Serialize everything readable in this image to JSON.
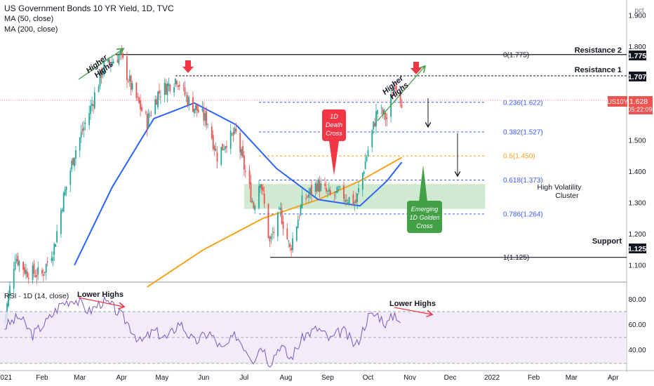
{
  "header": {
    "title": "US Government Bonds 10 YR Yield, 1D, TVC",
    "ma50": "MA (50, close)",
    "ma200": "MA (200, close)",
    "unit": "pct"
  },
  "rsi_panel": {
    "label": "RSI · 1D (14, close)",
    "yticks": [
      "80.00",
      "60.00",
      "40.00"
    ],
    "upper": 70,
    "mid": 50,
    "lower": 30
  },
  "colors": {
    "up": "#26a69a",
    "down": "#ef5350",
    "ma50": "#2962ff",
    "ma200": "#f7a21b",
    "rsi": "#7e57c2",
    "fib": "#3d5afe",
    "zone": "#c8e6c9",
    "annotation_red": "#f23645",
    "annotation_green": "#43a047"
  },
  "chart_data": {
    "type": "candlestick",
    "symbol": "US10Y",
    "last_value": "1.628",
    "countdown": "05:22:09",
    "ylim": [
      1.05,
      1.95
    ],
    "yticks": [
      "1.900",
      "1.800",
      "1.700",
      "1.600",
      "1.500",
      "1.400",
      "1.300",
      "1.200",
      "1.100"
    ],
    "x_labels": [
      {
        "label": "2021",
        "date": "2021-01-01"
      },
      {
        "label": "Feb",
        "date": "2021-02-01"
      },
      {
        "label": "Mar",
        "date": "2021-03-01"
      },
      {
        "label": "Apr",
        "date": "2021-04-01"
      },
      {
        "label": "May",
        "date": "2021-05-01"
      },
      {
        "label": "Jun",
        "date": "2021-06-01"
      },
      {
        "label": "Jul",
        "date": "2021-07-01"
      },
      {
        "label": "Aug",
        "date": "2021-08-01"
      },
      {
        "label": "Sep",
        "date": "2021-09-01"
      },
      {
        "label": "Oct",
        "date": "2021-10-01"
      },
      {
        "label": "Nov",
        "date": "2021-11-01"
      },
      {
        "label": "Dec",
        "date": "2021-12-01"
      },
      {
        "label": "2022",
        "date": "2022-01-01"
      },
      {
        "label": "Feb",
        "date": "2022-02-01"
      },
      {
        "label": "Mar",
        "date": "2022-03-01"
      },
      {
        "label": "Apr",
        "date": "2022-04-01"
      }
    ],
    "price_path": [
      [
        "2021-01-04",
        0.92
      ],
      [
        "2021-01-12",
        1.13
      ],
      [
        "2021-01-20",
        1.08
      ],
      [
        "2021-02-01",
        1.07
      ],
      [
        "2021-02-10",
        1.16
      ],
      [
        "2021-02-16",
        1.3
      ],
      [
        "2021-02-25",
        1.46
      ],
      [
        "2021-03-08",
        1.59
      ],
      [
        "2021-03-18",
        1.73
      ],
      [
        "2021-03-31",
        1.775
      ],
      [
        "2021-04-09",
        1.66
      ],
      [
        "2021-04-20",
        1.56
      ],
      [
        "2021-04-28",
        1.65
      ],
      [
        "2021-05-12",
        1.7
      ],
      [
        "2021-05-20",
        1.63
      ],
      [
        "2021-06-04",
        1.56
      ],
      [
        "2021-06-11",
        1.45
      ],
      [
        "2021-06-18",
        1.5
      ],
      [
        "2021-06-25",
        1.52
      ],
      [
        "2021-07-08",
        1.29
      ],
      [
        "2021-07-13",
        1.38
      ],
      [
        "2021-07-20",
        1.17
      ],
      [
        "2021-07-28",
        1.27
      ],
      [
        "2021-08-04",
        1.15
      ],
      [
        "2021-08-13",
        1.3
      ],
      [
        "2021-08-24",
        1.36
      ],
      [
        "2021-09-03",
        1.32
      ],
      [
        "2021-09-10",
        1.33
      ],
      [
        "2021-09-22",
        1.3
      ],
      [
        "2021-10-01",
        1.47
      ],
      [
        "2021-10-08",
        1.6
      ],
      [
        "2021-10-15",
        1.57
      ],
      [
        "2021-10-21",
        1.69
      ],
      [
        "2021-10-26",
        1.628
      ]
    ],
    "ma50": [
      [
        "2021-02-25",
        1.1
      ],
      [
        "2021-03-25",
        1.35
      ],
      [
        "2021-04-25",
        1.57
      ],
      [
        "2021-05-25",
        1.62
      ],
      [
        "2021-06-25",
        1.55
      ],
      [
        "2021-07-25",
        1.41
      ],
      [
        "2021-08-25",
        1.31
      ],
      [
        "2021-09-25",
        1.29
      ],
      [
        "2021-10-15",
        1.37
      ],
      [
        "2021-10-26",
        1.43
      ]
    ],
    "ma200": [
      [
        "2021-04-20",
        1.03
      ],
      [
        "2021-06-01",
        1.15
      ],
      [
        "2021-07-15",
        1.25
      ],
      [
        "2021-08-25",
        1.31
      ],
      [
        "2021-09-25",
        1.37
      ],
      [
        "2021-10-26",
        1.445
      ]
    ],
    "levels": [
      {
        "label": "Resistance 2",
        "value": "1.775"
      },
      {
        "label": "Resistance 1",
        "value": "1.707"
      },
      {
        "label": "Support",
        "value": "1.125"
      }
    ],
    "fib_levels": [
      {
        "label": "0(1.775)",
        "value": 1.775
      },
      {
        "label": "0.236(1.622)",
        "value": 1.622
      },
      {
        "label": "0.382(1.527)",
        "value": 1.527
      },
      {
        "label": "0.5(1.450)",
        "value": 1.45
      },
      {
        "label": "0.618(1.373)",
        "value": 1.373
      },
      {
        "label": "0.786(1.264)",
        "value": 1.264
      },
      {
        "label": "1(1.125)",
        "value": 1.125
      }
    ],
    "zone": {
      "label": [
        "High Volatility",
        "Cluster"
      ],
      "from_date": "2021-07-01",
      "to_date": "2021-12-27",
      "low": 1.28,
      "high": 1.36
    },
    "annotations": {
      "higher_highs_1": [
        "Higher",
        "Highs"
      ],
      "higher_highs_2": [
        "Higher",
        "Highs"
      ],
      "death_cross": [
        "1D",
        "Death",
        "Cross"
      ],
      "golden_cross": [
        "Emerging",
        "1D Golden",
        "Cross"
      ],
      "lower_highs_1": "Lower Highs",
      "lower_highs_2": "Lower Highs"
    },
    "rsi": [
      [
        "2021-01-04",
        58
      ],
      [
        "2021-01-15",
        66
      ],
      [
        "2021-01-25",
        52
      ],
      [
        "2021-02-05",
        63
      ],
      [
        "2021-02-15",
        76
      ],
      [
        "2021-02-25",
        80
      ],
      [
        "2021-03-08",
        70
      ],
      [
        "2021-03-18",
        78
      ],
      [
        "2021-03-25",
        74
      ],
      [
        "2021-04-05",
        62
      ],
      [
        "2021-04-15",
        46
      ],
      [
        "2021-04-25",
        55
      ],
      [
        "2021-05-05",
        49
      ],
      [
        "2021-05-14",
        62
      ],
      [
        "2021-05-25",
        46
      ],
      [
        "2021-06-05",
        54
      ],
      [
        "2021-06-15",
        40
      ],
      [
        "2021-06-25",
        52
      ],
      [
        "2021-07-08",
        33
      ],
      [
        "2021-07-14",
        45
      ],
      [
        "2021-07-20",
        30
      ],
      [
        "2021-07-28",
        45
      ],
      [
        "2021-08-04",
        33
      ],
      [
        "2021-08-15",
        52
      ],
      [
        "2021-08-25",
        57
      ],
      [
        "2021-09-03",
        48
      ],
      [
        "2021-09-12",
        56
      ],
      [
        "2021-09-22",
        43
      ],
      [
        "2021-10-01",
        66
      ],
      [
        "2021-10-08",
        68
      ],
      [
        "2021-10-15",
        60
      ],
      [
        "2021-10-21",
        69
      ],
      [
        "2021-10-26",
        61
      ]
    ]
  }
}
